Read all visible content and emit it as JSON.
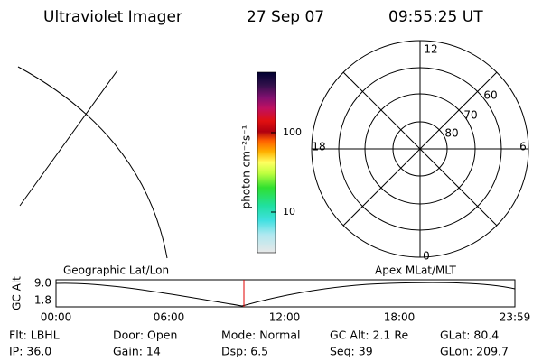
{
  "header": {
    "title": "Ultraviolet Imager",
    "date": "27 Sep 07",
    "time": "09:55:25 UT"
  },
  "colorbar": {
    "label": "photon cm⁻²s⁻¹",
    "ticks": [
      "100",
      "10"
    ]
  },
  "polar": {
    "mlt_labels": [
      "12",
      "18",
      "6",
      "0"
    ],
    "lat_labels": [
      "60",
      "70",
      "80"
    ]
  },
  "altitude_plot": {
    "y_label": "GC Alt",
    "y_ticks": [
      "9.0",
      "1.8"
    ],
    "left_title": "Geographic Lat/Lon",
    "right_title": "Apex MLat/MLT",
    "x_ticks": [
      "00:00",
      "06:00",
      "12:00",
      "18:00",
      "23:59"
    ]
  },
  "status": [
    [
      "Flt: LBHL",
      "Door: Open",
      "Mode: Normal",
      "GC Alt: 2.1 Re",
      "GLat: 80.4"
    ],
    [
      "IP: 36.0",
      "Gain: 14",
      "Dsp:    6.5",
      "Seq: 39",
      "GLon: 209.7"
    ]
  ]
}
